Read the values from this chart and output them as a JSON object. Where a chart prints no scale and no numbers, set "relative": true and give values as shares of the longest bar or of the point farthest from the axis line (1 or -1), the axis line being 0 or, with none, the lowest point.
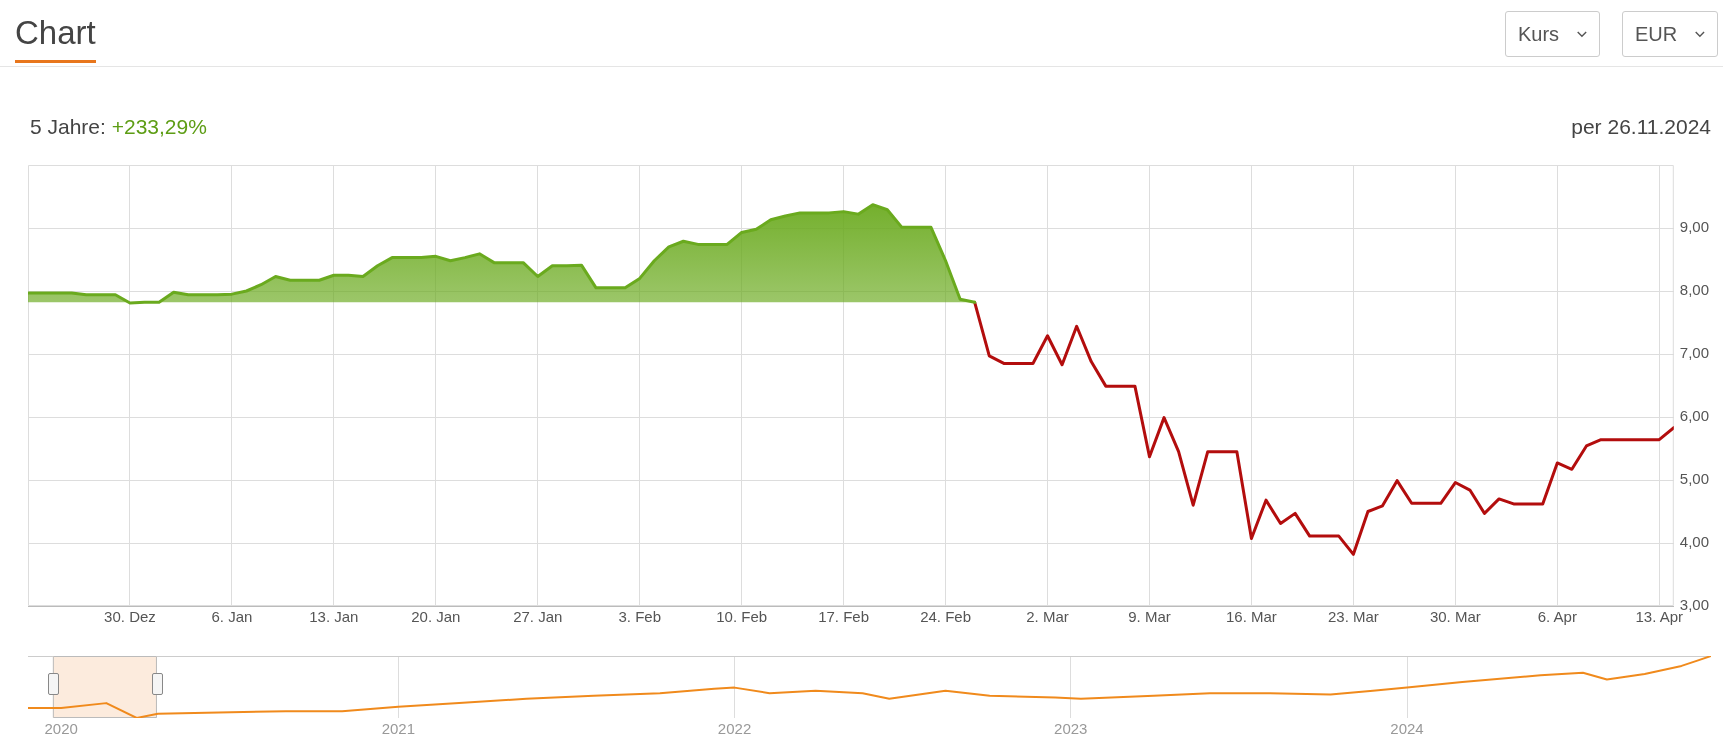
{
  "chart_data": [
    {
      "type": "area",
      "title": "Chart",
      "subtitle": "5 Jahre:",
      "annotations": [
        "+233,29%",
        "per 26.11.2024",
        "Kurs",
        "EUR"
      ],
      "xlim": [
        "2019-12-23",
        "2020-04-14"
      ],
      "xticks": [
        {
          "value": "2019-12-30",
          "label": "30. Dez"
        },
        {
          "value": "2020-01-06",
          "label": "6. Jan"
        },
        {
          "value": "2020-01-13",
          "label": "13. Jan"
        },
        {
          "value": "2020-01-20",
          "label": "20. Jan"
        },
        {
          "value": "2020-01-27",
          "label": "27. Jan"
        },
        {
          "value": "2020-02-03",
          "label": "3. Feb"
        },
        {
          "value": "2020-02-10",
          "label": "10. Feb"
        },
        {
          "value": "2020-02-17",
          "label": "17. Feb"
        },
        {
          "value": "2020-02-24",
          "label": "24. Feb"
        },
        {
          "value": "2020-03-02",
          "label": "2. Mar"
        },
        {
          "value": "2020-03-09",
          "label": "9. Mar"
        },
        {
          "value": "2020-03-16",
          "label": "16. Mar"
        },
        {
          "value": "2020-03-23",
          "label": "23. Mar"
        },
        {
          "value": "2020-03-30",
          "label": "30. Mar"
        },
        {
          "value": "2020-04-06",
          "label": "6. Apr"
        },
        {
          "value": "2020-04-13",
          "label": "13. Apr"
        }
      ],
      "ylim": [
        3,
        10
      ],
      "yticks": [
        {
          "value": 3,
          "label": "3,00"
        },
        {
          "value": 4,
          "label": "4,00"
        },
        {
          "value": 5,
          "label": "5,00"
        },
        {
          "value": 6,
          "label": "6,00"
        },
        {
          "value": 7,
          "label": "7,00"
        },
        {
          "value": 8,
          "label": "8,00"
        },
        {
          "value": 9,
          "label": "9,00"
        }
      ],
      "grid": true,
      "legend": false,
      "marker": "none",
      "series": [
        {
          "color": "#6aaa1e",
          "x": [
            "2019-12-23",
            "2019-12-26",
            "2019-12-27",
            "2019-12-29",
            "2019-12-30",
            "2019-12-31",
            "2020-01-01",
            "2020-01-02",
            "2020-01-03",
            "2020-01-05",
            "2020-01-06",
            "2020-01-07",
            "2020-01-08",
            "2020-01-09",
            "2020-01-10",
            "2020-01-12",
            "2020-01-13",
            "2020-01-14",
            "2020-01-15",
            "2020-01-16",
            "2020-01-17",
            "2020-01-19",
            "2020-01-20",
            "2020-01-21",
            "2020-01-22",
            "2020-01-23",
            "2020-01-24",
            "2020-01-26",
            "2020-01-27",
            "2020-01-28",
            "2020-01-29",
            "2020-01-30",
            "2020-01-31",
            "2020-02-02",
            "2020-02-03",
            "2020-02-04",
            "2020-02-05",
            "2020-02-06",
            "2020-02-07",
            "2020-02-09",
            "2020-02-10",
            "2020-02-11",
            "2020-02-12",
            "2020-02-13",
            "2020-02-14",
            "2020-02-16",
            "2020-02-17",
            "2020-02-18",
            "2020-02-19",
            "2020-02-20",
            "2020-02-21",
            "2020-02-23",
            "2020-02-24",
            "2020-02-25",
            "2020-02-26"
          ],
          "values": [
            7.97,
            7.97,
            7.94,
            7.94,
            7.81,
            7.82,
            7.82,
            7.98,
            7.94,
            7.94,
            7.95,
            8.0,
            8.1,
            8.23,
            8.17,
            8.17,
            8.25,
            8.25,
            8.23,
            8.4,
            8.53,
            8.53,
            8.55,
            8.48,
            8.53,
            8.59,
            8.45,
            8.45,
            8.23,
            8.4,
            8.4,
            8.41,
            8.05,
            8.05,
            8.2,
            8.48,
            8.7,
            8.79,
            8.74,
            8.74,
            8.93,
            8.98,
            9.13,
            9.19,
            9.24,
            9.24,
            9.26,
            9.22,
            9.37,
            9.29,
            9.01,
            9.01,
            8.48,
            7.87,
            7.82
          ]
        },
        {
          "type": "line",
          "color": "#b30d0d",
          "x": [
            "2020-02-26",
            "2020-02-27",
            "2020-02-28",
            "2020-03-01",
            "2020-03-02",
            "2020-03-03",
            "2020-03-04",
            "2020-03-05",
            "2020-03-06",
            "2020-03-08",
            "2020-03-09",
            "2020-03-10",
            "2020-03-11",
            "2020-03-12",
            "2020-03-13",
            "2020-03-15",
            "2020-03-16",
            "2020-03-17",
            "2020-03-18",
            "2020-03-19",
            "2020-03-20",
            "2020-03-22",
            "2020-03-23",
            "2020-03-24",
            "2020-03-25",
            "2020-03-26",
            "2020-03-27",
            "2020-03-29",
            "2020-03-30",
            "2020-03-31",
            "2020-04-01",
            "2020-04-02",
            "2020-04-03",
            "2020-04-05",
            "2020-04-06",
            "2020-04-07",
            "2020-04-08",
            "2020-04-09",
            "2020-04-13",
            "2020-04-14"
          ],
          "values": [
            7.82,
            6.97,
            6.85,
            6.85,
            7.29,
            6.83,
            7.44,
            6.88,
            6.49,
            6.49,
            5.37,
            5.99,
            5.45,
            4.6,
            5.45,
            5.45,
            4.07,
            4.68,
            4.31,
            4.47,
            4.11,
            4.11,
            3.82,
            4.5,
            4.59,
            4.99,
            4.63,
            4.63,
            4.96,
            4.84,
            4.47,
            4.7,
            4.62,
            4.62,
            5.27,
            5.17,
            5.54,
            5.64,
            5.64,
            5.83
          ]
        }
      ]
    },
    {
      "type": "line",
      "relative": true,
      "grid": "x",
      "bands": [
        {
          "axis": "x",
          "from": "2019-12-23",
          "to": "2020-04-14",
          "color": "#fcebdd"
        }
      ],
      "legend": false,
      "marker": "none",
      "tick_labels": "x",
      "xlim": [
        "2019-11-26",
        "2024-11-26"
      ],
      "xticks": [
        {
          "value": "2020-01-01",
          "label": "2020"
        },
        {
          "value": "2021-01-01",
          "label": "2021"
        },
        {
          "value": "2022-01-01",
          "label": "2022"
        },
        {
          "value": "2023-01-01",
          "label": "2023"
        },
        {
          "value": "2024-01-01",
          "label": "2024"
        }
      ],
      "series": [
        {
          "color": "#f08a1c",
          "x": [
            "2019-11-26",
            "2020-01-01",
            "2020-02-19",
            "2020-03-23",
            "2020-04-15",
            "2020-06-20",
            "2020-09-01",
            "2020-11-01",
            "2021-01-01",
            "2021-03-08",
            "2021-05-20",
            "2021-08-01",
            "2021-10-12",
            "2021-12-10",
            "2022-01-01",
            "2022-02-08",
            "2022-03-30",
            "2022-05-20",
            "2022-06-18",
            "2022-08-18",
            "2022-10-05",
            "2022-12-15",
            "2023-01-12",
            "2023-04-01",
            "2023-06-01",
            "2023-08-01",
            "2023-10-10",
            "2023-11-25",
            "2024-01-01",
            "2024-03-01",
            "2024-05-25",
            "2024-07-10",
            "2024-08-05",
            "2024-09-15",
            "2024-10-25",
            "2024-11-12",
            "2024-11-26"
          ],
          "values": [
            0.16,
            0.16,
            0.24,
            0,
            0.07,
            0.09,
            0.11,
            0.11,
            0.18,
            0.24,
            0.31,
            0.36,
            0.4,
            0.47,
            0.49,
            0.4,
            0.44,
            0.4,
            0.31,
            0.44,
            0.36,
            0.33,
            0.31,
            0.36,
            0.4,
            0.4,
            0.38,
            0.44,
            0.49,
            0.58,
            0.69,
            0.73,
            0.62,
            0.71,
            0.84,
            0.93,
            1
          ]
        }
      ]
    }
  ]
}
